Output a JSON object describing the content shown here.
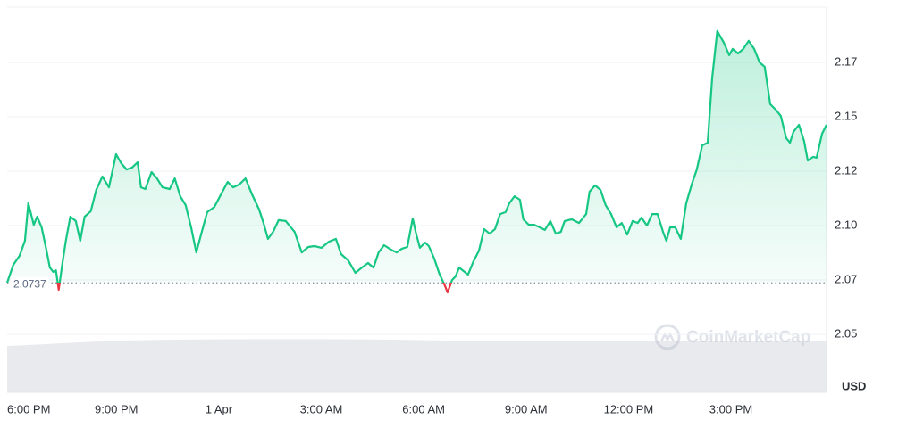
{
  "chart_data": {
    "type": "line",
    "x": [
      -0.2,
      -0.02,
      0.16,
      0.32,
      0.42,
      0.58,
      0.68,
      0.81,
      0.95,
      1.05,
      1.15,
      1.23,
      1.31,
      1.42,
      1.52,
      1.65,
      1.81,
      1.94,
      2.07,
      2.25,
      2.41,
      2.59,
      2.78,
      2.99,
      3.14,
      3.3,
      3.46,
      3.62,
      3.72,
      3.85,
      4.03,
      4.19,
      4.35,
      4.56,
      4.71,
      4.87,
      5.03,
      5.19,
      5.34,
      5.5,
      5.66,
      5.87,
      6.08,
      6.26,
      6.42,
      6.6,
      6.78,
      6.97,
      7.18,
      7.31,
      7.44,
      7.59,
      7.75,
      7.96,
      8.22,
      8.43,
      8.62,
      8.8,
      9.01,
      9.22,
      9.43,
      9.58,
      9.79,
      10,
      10.19,
      10.37,
      10.53,
      10.68,
      10.84,
      11.05,
      11.21,
      11.36,
      11.52,
      11.68,
      11.78,
      11.89,
      12.04,
      12.15,
      12.31,
      12.46,
      12.62,
      12.7,
      12.83,
      12.93,
      13.04,
      13.2,
      13.3,
      13.46,
      13.62,
      13.77,
      13.93,
      14.09,
      14.24,
      14.4,
      14.51,
      14.66,
      14.82,
      14.92,
      15.08,
      15.24,
      15.4,
      15.55,
      15.71,
      15.87,
      16.02,
      16.13,
      16.34,
      16.55,
      16.76,
      16.86,
      17.02,
      17.18,
      17.33,
      17.49,
      17.65,
      17.8,
      17.96,
      18.12,
      18.27,
      18.38,
      18.54,
      18.69,
      18.85,
      19.01,
      19.11,
      19.22,
      19.37,
      19.53,
      19.69,
      19.85,
      20,
      20.16,
      20.32,
      20.45,
      20.6,
      20.79,
      20.95,
      21.05,
      21.21,
      21.36,
      21.52,
      21.68,
      21.84,
      21.99,
      22.15,
      22.31,
      22.46,
      22.62,
      22.73,
      22.83,
      22.99,
      23.14,
      23.25,
      23.41,
      23.51,
      23.67,
      23.8
    ],
    "values": [
      2.0738,
      2.082,
      2.0861,
      2.093,
      2.1103,
      2.1004,
      2.1041,
      2.0992,
      2.0889,
      2.0807,
      2.0787,
      2.0795,
      2.0705,
      2.0828,
      2.093,
      2.1041,
      2.1021,
      2.093,
      2.1041,
      2.1066,
      2.1164,
      2.1226,
      2.1176,
      2.1328,
      2.1287,
      2.1258,
      2.1267,
      2.1291,
      2.1176,
      2.1168,
      2.1246,
      2.1217,
      2.1176,
      2.1168,
      2.1217,
      2.1135,
      2.1094,
      2.0992,
      2.0877,
      2.0971,
      2.1062,
      2.1086,
      2.1148,
      2.1201,
      2.1176,
      2.1189,
      2.1217,
      2.1144,
      2.1074,
      2.1012,
      2.0939,
      2.0971,
      2.1025,
      2.1021,
      2.0971,
      2.0877,
      2.0902,
      2.0906,
      2.0898,
      2.0926,
      2.0939,
      2.0869,
      2.084,
      2.0783,
      2.0807,
      2.0828,
      2.0807,
      2.0877,
      2.091,
      2.0889,
      2.0877,
      2.0894,
      2.0902,
      2.1033,
      2.0963,
      2.0898,
      2.0922,
      2.0906,
      2.0848,
      2.0779,
      2.0725,
      2.0693,
      2.075,
      2.0766,
      2.0807,
      2.0787,
      2.0775,
      2.0836,
      2.0885,
      2.0984,
      2.0963,
      2.0984,
      2.1053,
      2.1062,
      2.1103,
      2.1135,
      2.1119,
      2.1029,
      2.1004,
      2.1004,
      2.0992,
      2.098,
      2.1021,
      2.0963,
      2.0971,
      2.1021,
      2.1029,
      2.1012,
      2.1053,
      2.1156,
      2.1185,
      2.1164,
      2.1094,
      2.1053,
      2.0992,
      2.1012,
      2.0959,
      2.1021,
      2.1012,
      2.1037,
      2.1,
      2.1053,
      2.1053,
      2.0971,
      2.093,
      2.0992,
      2.0992,
      2.0939,
      2.1103,
      2.1189,
      2.1258,
      2.1369,
      2.1381,
      2.1677,
      2.1894,
      2.1841,
      2.1783,
      2.1812,
      2.1791,
      2.1812,
      2.1849,
      2.1812,
      2.175,
      2.173,
      2.1558,
      2.1533,
      2.1504,
      2.1402,
      2.1381,
      2.1431,
      2.1463,
      2.139,
      2.1299,
      2.1316,
      2.1312,
      2.1422,
      2.1463
    ],
    "color_up": "#16c784",
    "color_down": "#ea3943",
    "baseline": 2.0737,
    "xlim": [
      -0.2,
      23.8
    ],
    "xticks": [
      {
        "value": 0,
        "label": "6:00 PM"
      },
      {
        "value": 3,
        "label": "9:00 PM"
      },
      {
        "value": 6,
        "label": "1 Apr"
      },
      {
        "value": 9,
        "label": "3:00 AM"
      },
      {
        "value": 12,
        "label": "6:00 AM"
      },
      {
        "value": 15,
        "label": "9:00 AM"
      },
      {
        "value": 18,
        "label": "12:00 PM"
      },
      {
        "value": 21,
        "label": "3:00 PM"
      }
    ],
    "ylim": [
      2.0234,
      2.2004
    ],
    "yticks": [
      {
        "value": 2.05,
        "label": "2.05"
      },
      {
        "value": 2.075,
        "label": "2.07"
      },
      {
        "value": 2.1,
        "label": "2.10"
      },
      {
        "value": 2.125,
        "label": "2.12"
      },
      {
        "value": 2.15,
        "label": "2.15"
      },
      {
        "value": 2.175,
        "label": "2.17"
      }
    ],
    "y_axis_label": "USD",
    "watermark": "CoinMarketCap",
    "grid": true
  }
}
